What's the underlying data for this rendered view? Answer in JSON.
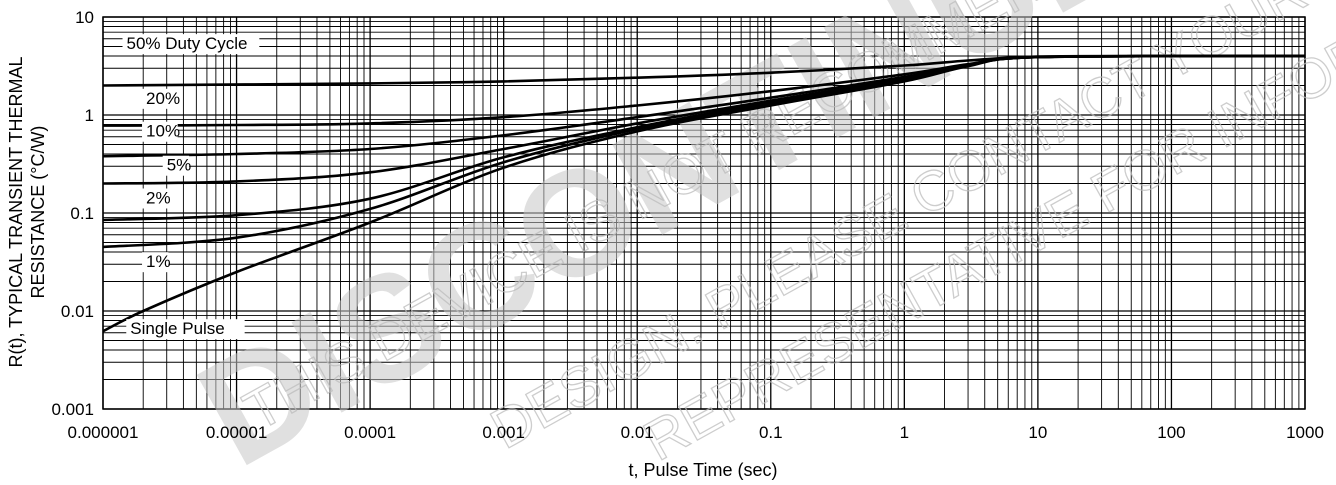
{
  "watermark": {
    "big": "DISCONTINUED",
    "lines": [
      "THIS DEVICE IS NOT RECOMMENDED FOR NEW",
      "DESIGN. PLEASE CONTACT YOUR onsemi",
      "REPRESENTATIVE FOR INFORMATION"
    ]
  },
  "chart_data": {
    "type": "line",
    "xlabel": "t, Pulse Time (sec)",
    "ylabel": [
      "R(t), TYPICAL TRANSIENT THERMAL",
      "RESISTANCE (°C/W)"
    ],
    "x_scale": "log",
    "y_scale": "log",
    "xlim": [
      1e-06,
      1000
    ],
    "ylim": [
      0.001,
      10
    ],
    "x_ticks": [
      {
        "v": 1e-06,
        "label": "0.000001"
      },
      {
        "v": 1e-05,
        "label": "0.00001"
      },
      {
        "v": 0.0001,
        "label": "0.0001"
      },
      {
        "v": 0.001,
        "label": "0.001"
      },
      {
        "v": 0.01,
        "label": "0.01"
      },
      {
        "v": 0.1,
        "label": "0.1"
      },
      {
        "v": 1,
        "label": "1"
      },
      {
        "v": 10,
        "label": "10"
      },
      {
        "v": 100,
        "label": "100"
      },
      {
        "v": 1000,
        "label": "1000"
      }
    ],
    "y_ticks": [
      {
        "v": 0.001,
        "label": "0.001"
      },
      {
        "v": 0.01,
        "label": "0.01"
      },
      {
        "v": 0.1,
        "label": "0.1"
      },
      {
        "v": 1,
        "label": "1"
      },
      {
        "v": 10,
        "label": "10"
      }
    ],
    "grid": true,
    "series": [
      {
        "name": "50% Duty Cycle",
        "label_at": [
          1.5e-06,
          4.7
        ],
        "points": [
          [
            1e-06,
            2.0
          ],
          [
            0.0001,
            2.1
          ],
          [
            0.001,
            2.2
          ],
          [
            0.01,
            2.4
          ],
          [
            0.1,
            2.7
          ],
          [
            1,
            3.2
          ],
          [
            3,
            3.6
          ],
          [
            10,
            3.95
          ],
          [
            100,
            4.0
          ],
          [
            1000,
            4.0
          ]
        ]
      },
      {
        "name": "20%",
        "label_at": [
          2.1e-06,
          1.3
        ],
        "points": [
          [
            1e-06,
            0.78
          ],
          [
            1e-05,
            0.79
          ],
          [
            0.0001,
            0.82
          ],
          [
            0.001,
            0.95
          ],
          [
            0.01,
            1.25
          ],
          [
            0.1,
            1.75
          ],
          [
            1,
            2.6
          ],
          [
            3,
            3.3
          ],
          [
            10,
            3.9
          ],
          [
            1000,
            4.0
          ]
        ]
      },
      {
        "name": "10%",
        "label_at": [
          2.1e-06,
          0.6
        ],
        "points": [
          [
            1e-06,
            0.38
          ],
          [
            1e-05,
            0.4
          ],
          [
            0.0001,
            0.45
          ],
          [
            0.001,
            0.62
          ],
          [
            0.01,
            0.95
          ],
          [
            0.1,
            1.5
          ],
          [
            1,
            2.45
          ],
          [
            3,
            3.25
          ],
          [
            10,
            3.9
          ],
          [
            1000,
            4.0
          ]
        ]
      },
      {
        "name": "5%",
        "label_at": [
          3e-06,
          0.27
        ],
        "points": [
          [
            1e-06,
            0.2
          ],
          [
            1e-05,
            0.21
          ],
          [
            0.0001,
            0.26
          ],
          [
            0.001,
            0.45
          ],
          [
            0.01,
            0.82
          ],
          [
            0.1,
            1.4
          ],
          [
            1,
            2.35
          ],
          [
            3,
            3.2
          ],
          [
            10,
            3.9
          ],
          [
            1000,
            4.0
          ]
        ]
      },
      {
        "name": "2%",
        "label_at": [
          2.1e-06,
          0.125
        ],
        "points": [
          [
            1e-06,
            0.085
          ],
          [
            1e-05,
            0.095
          ],
          [
            0.0001,
            0.14
          ],
          [
            0.001,
            0.37
          ],
          [
            0.01,
            0.75
          ],
          [
            0.1,
            1.35
          ],
          [
            1,
            2.3
          ],
          [
            3,
            3.2
          ],
          [
            10,
            3.9
          ],
          [
            1000,
            4.0
          ]
        ]
      },
      {
        "name": "1%",
        "label_at": [
          2.1e-06,
          0.028
        ],
        "points": [
          [
            1e-06,
            0.045
          ],
          [
            1e-05,
            0.056
          ],
          [
            0.0001,
            0.11
          ],
          [
            0.001,
            0.33
          ],
          [
            0.01,
            0.72
          ],
          [
            0.1,
            1.3
          ],
          [
            1,
            2.25
          ],
          [
            3,
            3.2
          ],
          [
            10,
            3.9
          ],
          [
            1000,
            4.0
          ]
        ]
      },
      {
        "name": "Single Pulse",
        "label_at": [
          1.6e-06,
          0.0058
        ],
        "points": [
          [
            1e-06,
            0.0062
          ],
          [
            2e-06,
            0.01
          ],
          [
            1e-05,
            0.025
          ],
          [
            0.0001,
            0.08
          ],
          [
            0.001,
            0.29
          ],
          [
            0.01,
            0.68
          ],
          [
            0.1,
            1.25
          ],
          [
            1,
            2.2
          ],
          [
            3,
            3.15
          ],
          [
            10,
            3.9
          ],
          [
            1000,
            4.0
          ]
        ]
      }
    ]
  }
}
